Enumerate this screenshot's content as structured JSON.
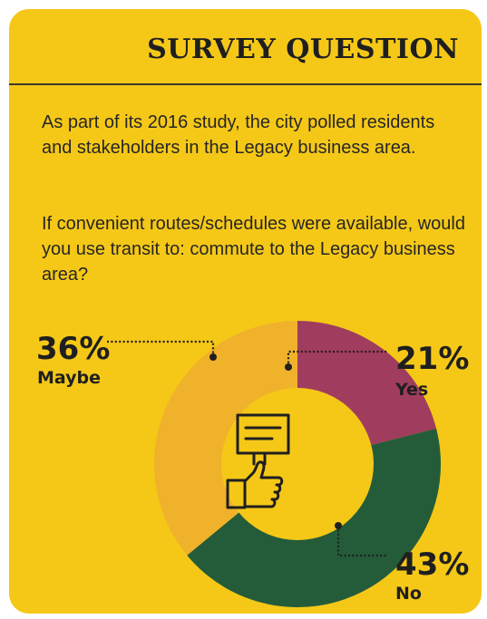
{
  "header": {
    "title": "SURVEY QUESTION"
  },
  "body": {
    "intro": "As part of its 2016 study, the city polled residents and stakeholders in the Legacy business area.",
    "question": "If convenient routes/schedules were available, would you use transit to: commute to the Legacy business area?"
  },
  "colors": {
    "background": "#f5c818",
    "yes": "#a03d5e",
    "no": "#245c39",
    "maybe": "#f0b12b",
    "center": "#f5c818",
    "ink": "#1f1f1f"
  },
  "icon": "thumbs-up-sign-icon",
  "chart_data": {
    "type": "pie",
    "variant": "donut",
    "categories": [
      "Yes",
      "No",
      "Maybe"
    ],
    "values": [
      21,
      43,
      36
    ],
    "labels": [
      "21%",
      "43%",
      "36%"
    ],
    "legend": "none"
  }
}
